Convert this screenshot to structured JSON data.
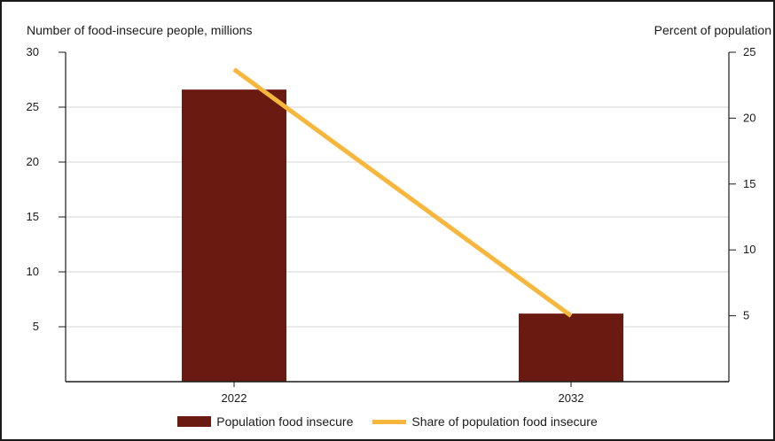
{
  "chart_data": {
    "type": "bar",
    "categories": [
      "2022",
      "2032"
    ],
    "y_left": {
      "label": "Number of food-insecure people, millions",
      "lim": [
        0,
        30
      ],
      "ticks": [
        5,
        10,
        15,
        20,
        25,
        30
      ]
    },
    "y_right": {
      "label": "Percent of population",
      "lim": [
        0,
        25
      ],
      "ticks": [
        5,
        10,
        15,
        20,
        25
      ]
    },
    "series": [
      {
        "name": "Population food insecure",
        "type": "bar",
        "axis": "left",
        "values": [
          26.6,
          6.2
        ]
      },
      {
        "name": "Share of population food insecure",
        "type": "line",
        "axis": "right",
        "values": [
          23.7,
          5.0
        ]
      }
    ],
    "colors": {
      "bar": "#6b1a11",
      "line": "#f6b73c",
      "grid": "#d6d6d6",
      "axis": "#1a1a1a"
    },
    "grid": true,
    "legend_position": "bottom"
  }
}
